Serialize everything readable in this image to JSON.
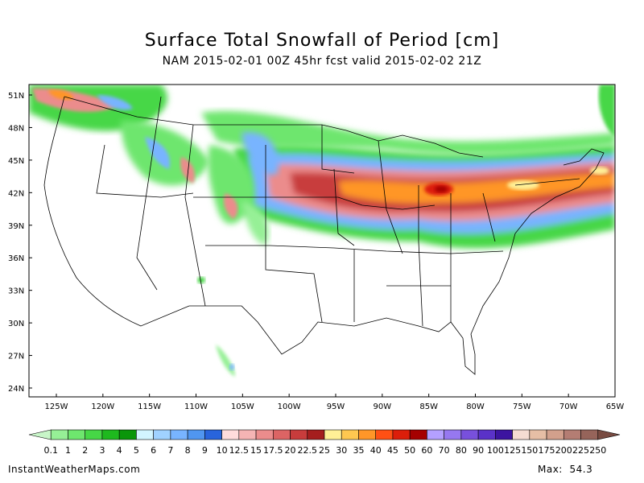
{
  "title": "Surface Total Snowfall of Period [cm]",
  "subtitle": "NAM 2015-02-01 00Z 45hr fcst valid 2015-02-02 21Z",
  "footer": {
    "site": "InstantWeatherMaps.com",
    "max_label": "Max:",
    "max_value": "54.3"
  },
  "map": {
    "lat_labels": [
      "51N",
      "48N",
      "45N",
      "42N",
      "39N",
      "36N",
      "33N",
      "30N",
      "27N",
      "24N"
    ],
    "lon_labels": [
      "125W",
      "120W",
      "115W",
      "110W",
      "105W",
      "100W",
      "95W",
      "90W",
      "85W",
      "80W",
      "75W",
      "70W",
      "65W"
    ],
    "lat_range": [
      23,
      52
    ],
    "lon_range": [
      -128,
      -65
    ]
  },
  "colorbar": {
    "labels": [
      "0.1",
      "1",
      "2",
      "3",
      "4",
      "5",
      "6",
      "7",
      "8",
      "9",
      "10",
      "12.5",
      "15",
      "17.5",
      "20",
      "22.5",
      "25",
      "30",
      "35",
      "40",
      "45",
      "50",
      "60",
      "70",
      "80",
      "90",
      "100",
      "125",
      "150",
      "175",
      "200",
      "225",
      "250"
    ],
    "colors": [
      "#c8f5c8",
      "#96f096",
      "#6ee66e",
      "#46d746",
      "#1eb91e",
      "#0a960a",
      "#d2f5ff",
      "#a0d2ff",
      "#78b4ff",
      "#5096f0",
      "#2864dc",
      "#ffdcdc",
      "#f5b4b4",
      "#eb8c8c",
      "#dc6464",
      "#c83c3c",
      "#a51e1e",
      "#fff096",
      "#ffc850",
      "#ff9628",
      "#ff5014",
      "#dc1e0a",
      "#a50000",
      "#b4a0ff",
      "#9678f0",
      "#7850dc",
      "#5a32c8",
      "#3c14a0",
      "#f5dcd2",
      "#e6bea5",
      "#d2a08c",
      "#b47d73",
      "#96645a",
      "#784b41"
    ]
  }
}
